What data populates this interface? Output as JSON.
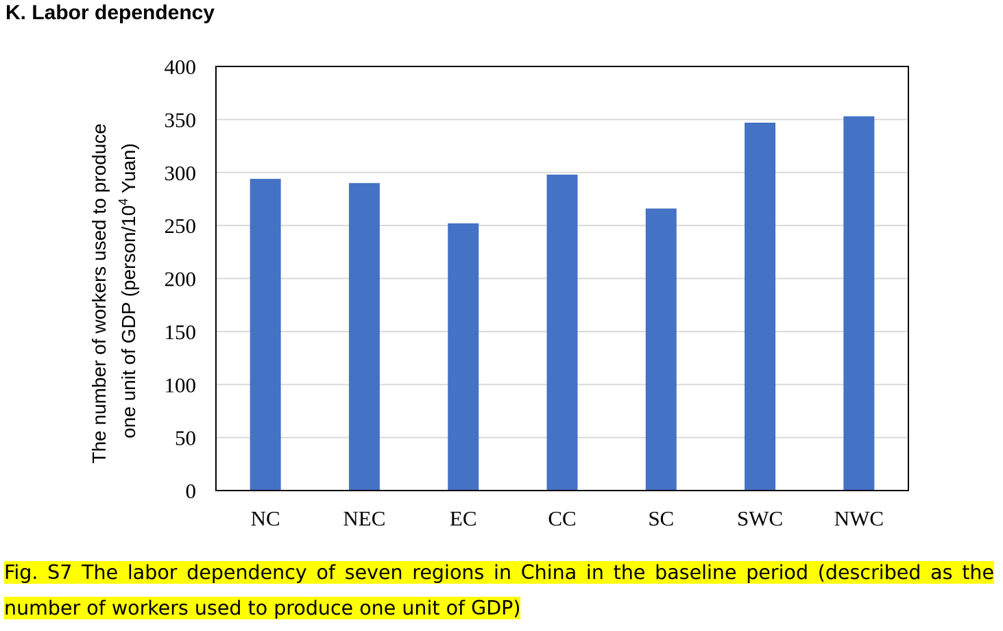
{
  "panel_title": "K. Labor dependency",
  "caption": "Fig. S7 The labor dependency of seven regions in China in the baseline period (described as the number of workers used to produce one unit of GDP)",
  "chart_data": {
    "type": "bar",
    "title": "",
    "xlabel": "",
    "ylabel_line1": "The number of workers used to produce",
    "ylabel_line2_prefix": "one unit of GDP (person/10",
    "ylabel_line2_sup": "4",
    "ylabel_line2_suffix": " Yuan)",
    "categories": [
      "NC",
      "NEC",
      "EC",
      "CC",
      "SC",
      "SWC",
      "NWC"
    ],
    "values": [
      294,
      290,
      252,
      298,
      266,
      347,
      353
    ],
    "ylim": [
      0,
      400
    ],
    "yticks": [
      0,
      50,
      100,
      150,
      200,
      250,
      300,
      350,
      400
    ],
    "grid": true,
    "legend": "none",
    "bar_color": "#4472c4",
    "grid_color": "#d9d9d9",
    "caption_highlight_color": "#ffff00"
  }
}
